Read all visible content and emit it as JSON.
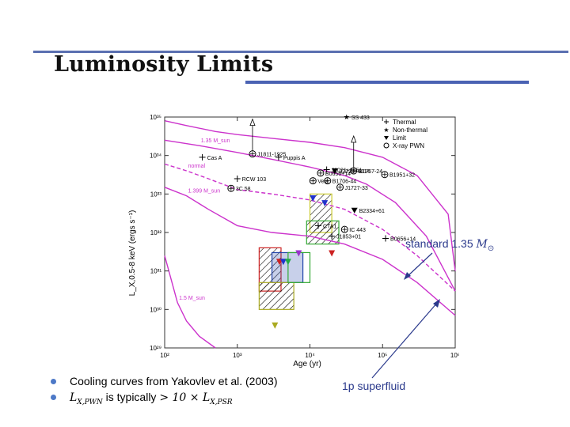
{
  "slide": {
    "title": "Luminosity Limits",
    "bullets": [
      {
        "text": "Cooling curves from Yakovlev et al. (2003)"
      },
      {
        "prefix": "L",
        "prefix_sub": "X,PWN",
        "middle": " is typically ",
        "math": "> 10 × L",
        "math_sub": "X,PSR"
      }
    ],
    "annotations": {
      "standard": "standard 1.35 ",
      "standard_math": "M",
      "standard_sub": "⊙",
      "superfluid": "1p superfluid"
    }
  },
  "colors": {
    "curve": "#cc33cc",
    "annotation": "#2b3a8c",
    "title_rule": "#4a62b3"
  },
  "chart_data": {
    "type": "scatter",
    "xlabel": "Age (yr)",
    "ylabel": "L_X,0.5-8 keV (ergs s⁻¹)",
    "x_scale": "log",
    "y_scale": "log",
    "xlim": [
      100,
      1000000
    ],
    "ylim": [
      1e+29,
      1e+35
    ],
    "x_ticks": [
      {
        "v": 100,
        "label": "10²"
      },
      {
        "v": 1000,
        "label": "10³"
      },
      {
        "v": 10000,
        "label": "10⁴"
      },
      {
        "v": 100000,
        "label": "10⁵"
      },
      {
        "v": 1000000,
        "label": "10⁶"
      }
    ],
    "y_ticks": [
      {
        "v": 1e+29,
        "label": "10²⁹"
      },
      {
        "v": 1e+30,
        "label": "10³⁰"
      },
      {
        "v": 1e+31,
        "label": "10³¹"
      },
      {
        "v": 1e+32,
        "label": "10³²"
      },
      {
        "v": 1e+33,
        "label": "10³³"
      },
      {
        "v": 1e+34,
        "label": "10³⁴"
      },
      {
        "v": 1e+35,
        "label": "10³⁵"
      }
    ],
    "legend": {
      "position": "top-right",
      "entries": [
        {
          "marker": "plus",
          "label": "Thermal"
        },
        {
          "marker": "star",
          "label": "Non-thermal"
        },
        {
          "marker": "triangle",
          "label": "Limit"
        },
        {
          "marker": "circle",
          "label": "X-ray PWN"
        }
      ]
    },
    "curves": [
      {
        "name": "1.35 M_sun",
        "style": "solid",
        "points": [
          [
            100,
            2.5e+34
          ],
          [
            300,
            1.8e+34
          ],
          [
            1000,
            1.2e+34
          ],
          [
            3000,
            8e+33
          ],
          [
            10000,
            5e+33
          ],
          [
            30000,
            3e+33
          ],
          [
            60000,
            1.8e+33
          ],
          [
            150000,
            6e+32
          ],
          [
            400000,
            8e+31
          ],
          [
            1000000,
            3e+30
          ]
        ]
      },
      {
        "name": "normal",
        "style": "dashed",
        "points": [
          [
            100,
            6e+33
          ],
          [
            200,
            4e+33
          ],
          [
            400,
            2.5e+33
          ],
          [
            1000,
            1.3e+33
          ],
          [
            3000,
            1e+33
          ],
          [
            10000,
            7e+32
          ],
          [
            30000,
            4e+32
          ],
          [
            100000,
            1.2e+32
          ],
          [
            300000,
            2.5e+31
          ],
          [
            1000000,
            3e+30
          ]
        ]
      },
      {
        "name": "1.399 M_sun",
        "style": "solid",
        "points": [
          [
            100,
            1.5e+33
          ],
          [
            200,
            9e+32
          ],
          [
            400,
            4e+32
          ],
          [
            1000,
            1.5e+32
          ],
          [
            3000,
            1e+32
          ],
          [
            10000,
            8e+31
          ],
          [
            30000,
            5e+31
          ],
          [
            100000,
            2e+31
          ],
          [
            300000,
            5e+30
          ],
          [
            1000000,
            7e+29
          ]
        ]
      },
      {
        "name": "1.5 M_sun",
        "style": "solid",
        "points": [
          [
            100,
            2.5e+31
          ],
          [
            150,
            1.5e+30
          ],
          [
            200,
            5e+29
          ],
          [
            300,
            2e+29
          ],
          [
            500,
            1e+29
          ]
        ]
      },
      {
        "name": "",
        "style": "solid",
        "points": [
          [
            100,
            8e+34
          ],
          [
            200,
            6e+34
          ],
          [
            500,
            4.2e+34
          ],
          [
            1000,
            3.5e+34
          ],
          [
            3000,
            2.8e+34
          ],
          [
            10000,
            2.2e+34
          ],
          [
            30000,
            1.6e+34
          ],
          [
            100000,
            9e+33
          ],
          [
            300000,
            3e+33
          ],
          [
            800000,
            3e+32
          ],
          [
            1000000,
            1e+31
          ]
        ]
      }
    ],
    "points": [
      {
        "label": "SS 433",
        "x": 32000,
        "y": 1e+35,
        "marker": "star"
      },
      {
        "label": "J1811-1925",
        "x": 1620,
        "y": 1.1e+34,
        "marker": "circle",
        "limit": true
      },
      {
        "label": "Cas A",
        "x": 330,
        "y": 9e+33,
        "marker": "plus"
      },
      {
        "label": "Puppis A",
        "x": 3700,
        "y": 9e+33,
        "marker": "plus"
      },
      {
        "label": "J2021+3651",
        "x": 17000,
        "y": 4.3e+33,
        "marker": "plus"
      },
      {
        "label": "J2229+6114",
        "x": 22000,
        "y": 4e+33,
        "marker": "triangle"
      },
      {
        "label": "B1757-24",
        "x": 40000,
        "y": 4e+33,
        "marker": "circle",
        "limit": true
      },
      {
        "label": "B0656+14",
        "x": 14000,
        "y": 3.5e+33,
        "marker": "circle"
      },
      {
        "label": "B1951+32",
        "x": 107000,
        "y": 3.2e+33,
        "marker": "circle"
      },
      {
        "label": "RCW 103",
        "x": 1000,
        "y": 2.5e+33,
        "marker": "plus"
      },
      {
        "label": "Vela",
        "x": 11000,
        "y": 2.2e+33,
        "marker": "circle"
      },
      {
        "label": "B1706-44",
        "x": 17500,
        "y": 2.2e+33,
        "marker": "circle"
      },
      {
        "label": "J1727-33",
        "x": 26000,
        "y": 1.5e+33,
        "marker": "circle"
      },
      {
        "label": "3C 58",
        "x": 820,
        "y": 1.4e+33,
        "marker": "circle"
      },
      {
        "label": "B2334+61",
        "x": 41000,
        "y": 3.8e+32,
        "marker": "triangle"
      },
      {
        "label": "IC 443",
        "x": 30000,
        "y": 1.2e+32,
        "marker": "circle"
      },
      {
        "label": "CTA1",
        "x": 13000,
        "y": 1.5e+32,
        "marker": "plus"
      },
      {
        "label": "J1853+01",
        "x": 20000,
        "y": 8e+31,
        "marker": "plus"
      },
      {
        "label": "B0656+14",
        "x": 110000,
        "y": 7e+31,
        "marker": "plus"
      }
    ],
    "limit_boxes": [
      {
        "x": [
          2000,
          4000
        ],
        "y": [
          3e+30,
          4e+31
        ],
        "color": "#cc2222",
        "pattern": "diag"
      },
      {
        "x": [
          3000,
          8000
        ],
        "y": [
          5e+30,
          3e+31
        ],
        "color": "#2244aa",
        "pattern": "cross"
      },
      {
        "x": [
          2000,
          6000
        ],
        "y": [
          1e+30,
          5e+30
        ],
        "color": "#aaaa22",
        "pattern": "diag"
      },
      {
        "x": [
          5000,
          10000
        ],
        "y": [
          5e+30,
          3e+31
        ],
        "color": "#33aa33",
        "pattern": "none"
      },
      {
        "x": [
          10000,
          20000
        ],
        "y": [
          1e+32,
          1e+33
        ],
        "color": "#cccc33",
        "pattern": "diag"
      },
      {
        "x": [
          9000,
          25000
        ],
        "y": [
          5e+31,
          2e+32
        ],
        "color": "#33aa33",
        "pattern": "diag"
      }
    ],
    "limit_markers": [
      {
        "x": 3800,
        "y": 1.8e+31,
        "color": "#cc2222"
      },
      {
        "x": 4300,
        "y": 1.8e+31,
        "color": "#2233cc"
      },
      {
        "x": 5000,
        "y": 1.8e+31,
        "color": "#22aa44"
      },
      {
        "x": 7000,
        "y": 3e+31,
        "color": "#9933cc"
      },
      {
        "x": 20000,
        "y": 3e+31,
        "color": "#cc2222"
      },
      {
        "x": 3300,
        "y": 4e+29,
        "color": "#aaaa22"
      },
      {
        "x": 11000,
        "y": 8e+32,
        "color": "#2233cc"
      },
      {
        "x": 16000,
        "y": 6e+32,
        "color": "#2233cc"
      }
    ]
  }
}
